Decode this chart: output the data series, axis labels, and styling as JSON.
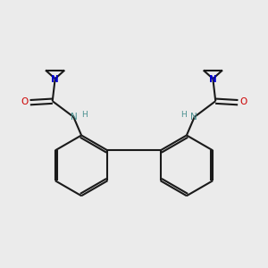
{
  "background_color": "#ebebeb",
  "line_color": "#1a1a1a",
  "N_color": "#0000cc",
  "O_color": "#cc0000",
  "NH_color": "#4a9090",
  "bond_lw": 1.5,
  "figsize": [
    3.0,
    3.0
  ],
  "dpi": 100,
  "xlim": [
    0,
    10
  ],
  "ylim": [
    0,
    10
  ]
}
